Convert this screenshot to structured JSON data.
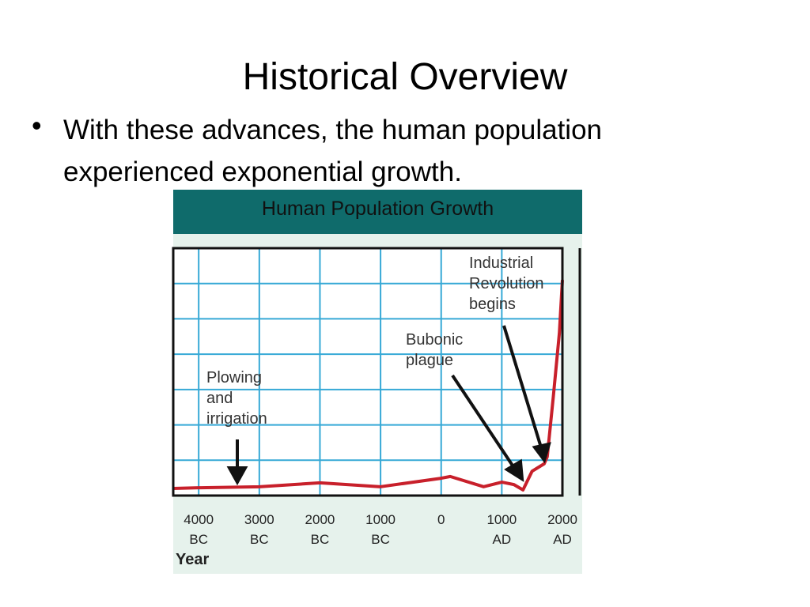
{
  "slide": {
    "title": "Historical Overview",
    "bullet": "With these advances, the human population experienced exponential growth."
  },
  "chart_data": {
    "type": "line",
    "title": "Human Population Growth",
    "x_label": "Year",
    "x": [
      -4420,
      -4000,
      -3000,
      -2000,
      -1000,
      0,
      150,
      700,
      1000,
      1200,
      1350,
      1500,
      1700,
      1750,
      1850,
      1950,
      2000
    ],
    "series": [
      {
        "values": [
          0.2,
          0.22,
          0.25,
          0.36,
          0.25,
          0.49,
          0.54,
          0.25,
          0.38,
          0.31,
          0.16,
          0.69,
          0.9,
          1.1,
          2.8,
          4.6,
          6.1
        ],
        "color": "#c8202b"
      }
    ],
    "xlim": [
      -4420,
      2000
    ],
    "xticks": [
      {
        "value": -4000,
        "label": "4000 BC"
      },
      {
        "value": -3000,
        "label": "3000 BC"
      },
      {
        "value": -2000,
        "label": "2000 BC"
      },
      {
        "value": -1000,
        "label": "1000 BC"
      },
      0,
      {
        "value": 1000,
        "label": "1000 AD"
      },
      {
        "value": 2000,
        "label": "2000 AD"
      }
    ],
    "ylim": [
      0,
      7
    ],
    "yticks": [
      1,
      2,
      3,
      4,
      5,
      6
    ],
    "grid": true,
    "grid_color": "#36a9d6",
    "annotations": [
      "Plowing and irrigation",
      "Bubonic plague",
      "Industrial Revolution begins"
    ]
  }
}
